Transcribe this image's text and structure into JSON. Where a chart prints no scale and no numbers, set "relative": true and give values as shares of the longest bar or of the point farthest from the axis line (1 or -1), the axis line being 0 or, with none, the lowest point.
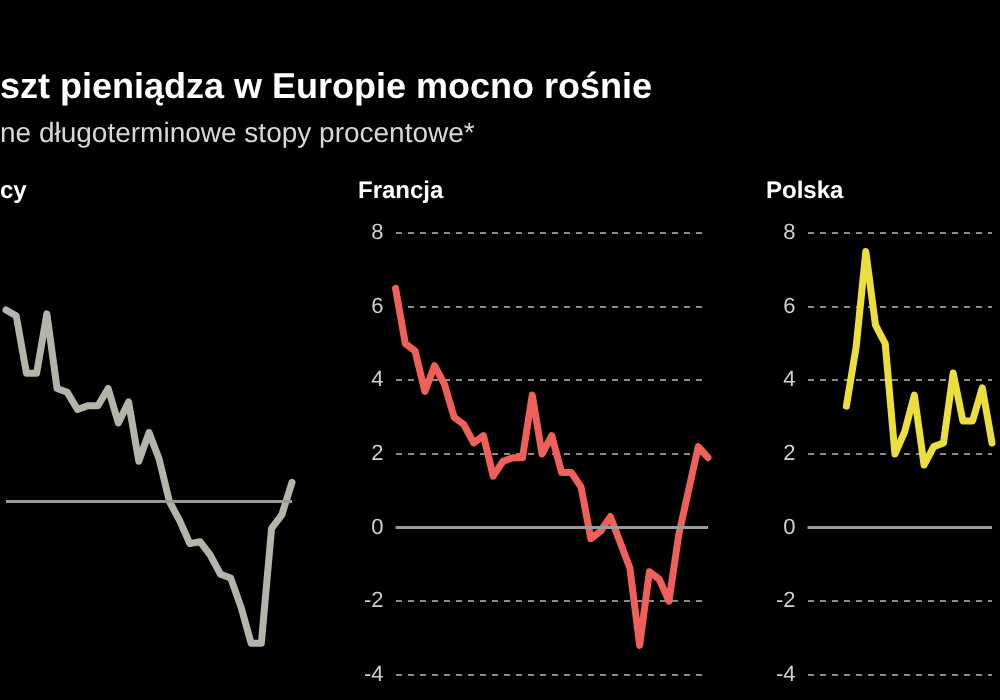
{
  "chart_data": [
    {
      "type": "line",
      "title": "szt pieniądza w Europie mocno rośnie",
      "subtitle": "ne długoterminowe stopy procentowe*",
      "categories": [
        null,
        null,
        null,
        null,
        null,
        null,
        null,
        null,
        null,
        null,
        null,
        null,
        null,
        null,
        null,
        null,
        null,
        null,
        null,
        null,
        null,
        null,
        null,
        null,
        null,
        null,
        null,
        null,
        null
      ],
      "relative": true,
      "series": [
        {
          "name": "cy",
          "color": "#b4b4aa",
          "values": [
            1,
            0.97,
            0.67,
            0.67,
            0.98,
            0.59,
            0.57,
            0.48,
            0.5,
            0.5,
            0.59,
            0.41,
            0.52,
            0.21,
            0.36,
            0.22,
            0.0,
            -0.1,
            -0.22,
            -0.21,
            -0.28,
            -0.38,
            -0.4,
            -0.55,
            -0.74,
            -0.74,
            -0.14,
            -0.07,
            0.1
          ]
        }
      ]
    },
    {
      "type": "line",
      "categories": [
        null,
        null,
        null,
        null,
        null,
        null,
        null,
        null,
        null,
        null,
        null,
        null,
        null,
        null,
        null,
        null,
        null,
        null,
        null,
        null,
        null,
        null,
        null,
        null,
        null,
        null,
        null,
        null,
        null,
        null,
        null,
        null,
        null
      ],
      "series": [
        {
          "name": "Francja",
          "color": "#f0605a",
          "values": [
            6.5,
            5.0,
            4.8,
            3.7,
            4.4,
            3.9,
            3.0,
            2.8,
            2.3,
            2.5,
            1.4,
            1.8,
            1.9,
            1.9,
            3.6,
            2.0,
            2.5,
            1.5,
            1.5,
            1.1,
            -0.3,
            -0.1,
            0.3,
            -0.4,
            -1.1,
            -3.2,
            -1.2,
            -1.4,
            -2.0,
            -0.2,
            1.0,
            2.2,
            1.9
          ]
        }
      ],
      "ylim": [
        -4,
        8
      ],
      "yticks": [
        -4,
        -2,
        0,
        2,
        4,
        6,
        8
      ],
      "grid": "y",
      "tick_labels": "y",
      "ref_lines": [
        {
          "axis": "y",
          "value": 0
        }
      ]
    },
    {
      "type": "line",
      "categories": [
        null,
        null,
        null,
        null,
        null,
        null,
        null,
        null,
        null,
        null,
        null,
        null,
        null,
        null,
        null,
        null,
        null,
        null,
        null,
        null
      ],
      "series": [
        {
          "name": "Polska",
          "color": "#ecdf3c",
          "values": [
            null,
            null,
            null,
            null,
            3.3,
            4.9,
            7.5,
            5.5,
            5.0,
            2.0,
            2.6,
            3.6,
            1.7,
            2.2,
            2.3,
            4.2,
            2.9,
            2.9,
            3.8,
            2.3
          ]
        }
      ],
      "ylim": [
        -4,
        8
      ],
      "yticks": [
        -4,
        -2,
        0,
        2,
        4,
        6,
        8
      ],
      "grid": "y",
      "tick_labels": "y",
      "ref_lines": [
        {
          "axis": "y",
          "value": 0
        }
      ]
    }
  ]
}
